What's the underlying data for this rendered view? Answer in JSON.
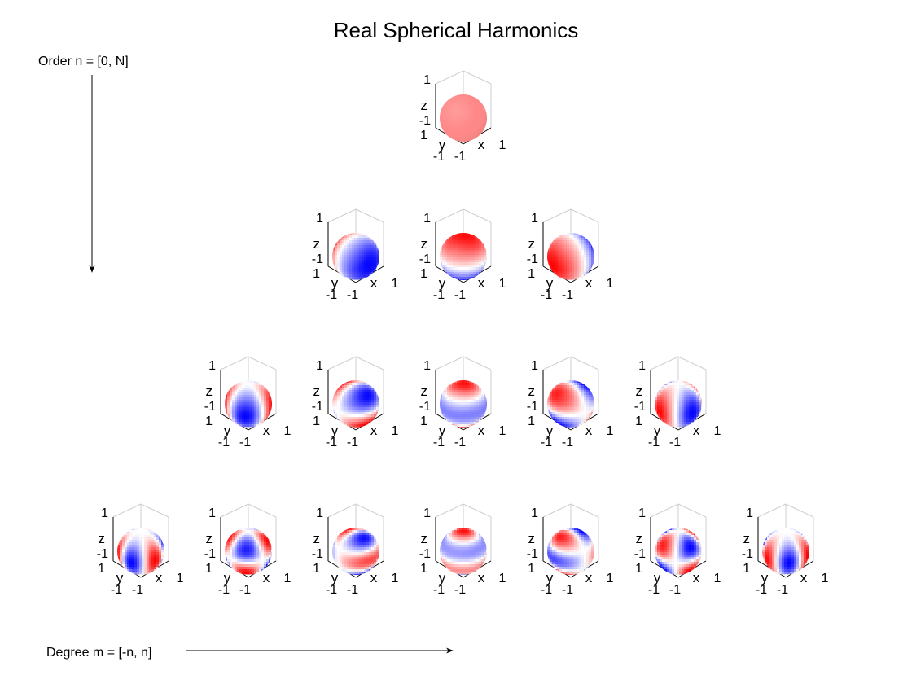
{
  "title": "Real Spherical Harmonics",
  "order_label": "Order n = [0, N]",
  "degree_label": "Degree m = [-n, n]",
  "axis_labels": {
    "x": "x",
    "y": "y",
    "z": "z",
    "z_top": "1",
    "z_bottom": "-1",
    "y_top": "1",
    "y_bottom": "-1",
    "x_left": "-1",
    "x_right": "1"
  },
  "colors": {
    "positive": "#ff2020",
    "negative": "#2a2aff",
    "neutral": "#ffffff",
    "box": "#cfcfcf"
  },
  "rows": [
    {
      "order": 0,
      "degrees": [
        0
      ]
    },
    {
      "order": 1,
      "degrees": [
        -1,
        0,
        1
      ]
    },
    {
      "order": 2,
      "degrees": [
        -2,
        -1,
        0,
        1,
        2
      ]
    },
    {
      "order": 3,
      "degrees": [
        -3,
        -2,
        -1,
        0,
        1,
        2,
        3
      ]
    }
  ]
}
